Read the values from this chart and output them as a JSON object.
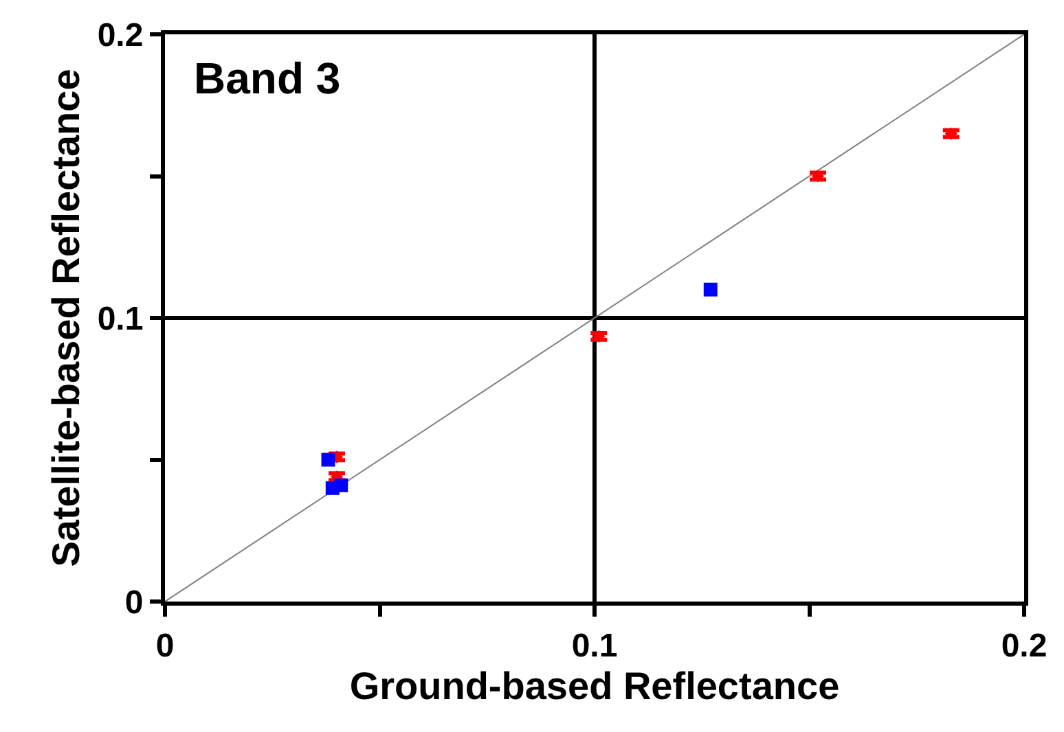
{
  "chart_data": {
    "type": "scatter",
    "xlabel": "Ground-based Reflectance",
    "ylabel": "Satellite-based Reflectance",
    "annotations": [
      "Band 3"
    ],
    "xlim": [
      0,
      0.2
    ],
    "ylim": [
      0,
      0.2
    ],
    "xticks": [
      0,
      {
        "value": 0.05,
        "label": null
      },
      0.1,
      {
        "value": 0.15,
        "label": null
      },
      0.2
    ],
    "yticks": [
      0,
      {
        "value": 0.05,
        "label": null
      },
      0.1,
      {
        "value": 0.15,
        "label": null
      },
      0.2
    ],
    "grid": true,
    "series": [
      {
        "type": "line",
        "color": "#808080",
        "x": [
          0,
          0.2
        ],
        "values": [
          0,
          0.2
        ],
        "marker": "none"
      },
      {
        "color": "#ff0000",
        "marker": "diamond",
        "x": [
          0.04,
          0.04,
          0.101,
          0.152,
          0.183
        ],
        "values": [
          0.051,
          0.044,
          0.0935,
          0.15,
          0.165
        ],
        "errors": [
          0.0012,
          0.0012,
          0.0012,
          0.0012,
          0.0012
        ]
      },
      {
        "color": "#0000ff",
        "marker": "square",
        "x": [
          0.038,
          0.039,
          0.041,
          0.127
        ],
        "values": [
          0.05,
          0.04,
          0.041,
          0.11
        ]
      }
    ]
  }
}
